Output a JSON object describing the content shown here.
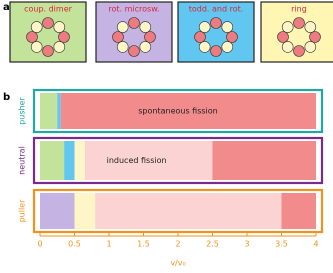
{
  "chart_data": {
    "type": "phase-bar",
    "panel_labels": [
      "a",
      "b"
    ],
    "states": [
      {
        "label": "coup. dimer",
        "color": "#c3e29a"
      },
      {
        "label": "rot. microsw.",
        "color": "#c4b3e3"
      },
      {
        "label": "todd. and rot.",
        "color": "#62c7f0"
      },
      {
        "label": "ring",
        "color": "#fff6b4"
      }
    ],
    "rows": [
      {
        "name": "pusher",
        "color": "#21a7a4",
        "segments": [
          {
            "start": 0,
            "end": 0.25,
            "color": "#c3e29a"
          },
          {
            "start": 0.25,
            "end": 0.3,
            "color": "#62c7f0"
          },
          {
            "start": 0.3,
            "end": 4,
            "color": "#f28b8b"
          }
        ]
      },
      {
        "name": "neutral",
        "color": "#7a2a8c",
        "segments": [
          {
            "start": 0,
            "end": 0.35,
            "color": "#c3e29a"
          },
          {
            "start": 0.35,
            "end": 0.5,
            "color": "#62c7f0"
          },
          {
            "start": 0.5,
            "end": 0.65,
            "color": "#fff6c8"
          },
          {
            "start": 0.65,
            "end": 2.5,
            "color": "#fbd3d3"
          },
          {
            "start": 2.5,
            "end": 4,
            "color": "#f28b8b"
          }
        ]
      },
      {
        "name": "puller",
        "color": "#f0921e",
        "segments": [
          {
            "start": 0,
            "end": 0.5,
            "color": "#c4b3e3"
          },
          {
            "start": 0.5,
            "end": 0.8,
            "color": "#fff6c8"
          },
          {
            "start": 0.8,
            "end": 3.5,
            "color": "#fbd3d3"
          },
          {
            "start": 3.5,
            "end": 4,
            "color": "#f28b8b"
          }
        ]
      }
    ],
    "annotations": [
      {
        "text": "spontaneous fission",
        "row": 0,
        "x": 2.0
      },
      {
        "text": "induced fission",
        "row": 1,
        "x": 1.4
      }
    ],
    "xlabel": "v/v₀",
    "xlim": [
      0,
      4
    ],
    "xticks": [
      0,
      0.5,
      1,
      1.5,
      2,
      2.5,
      3,
      3.5,
      4
    ],
    "axis_color": "#f0921e"
  }
}
